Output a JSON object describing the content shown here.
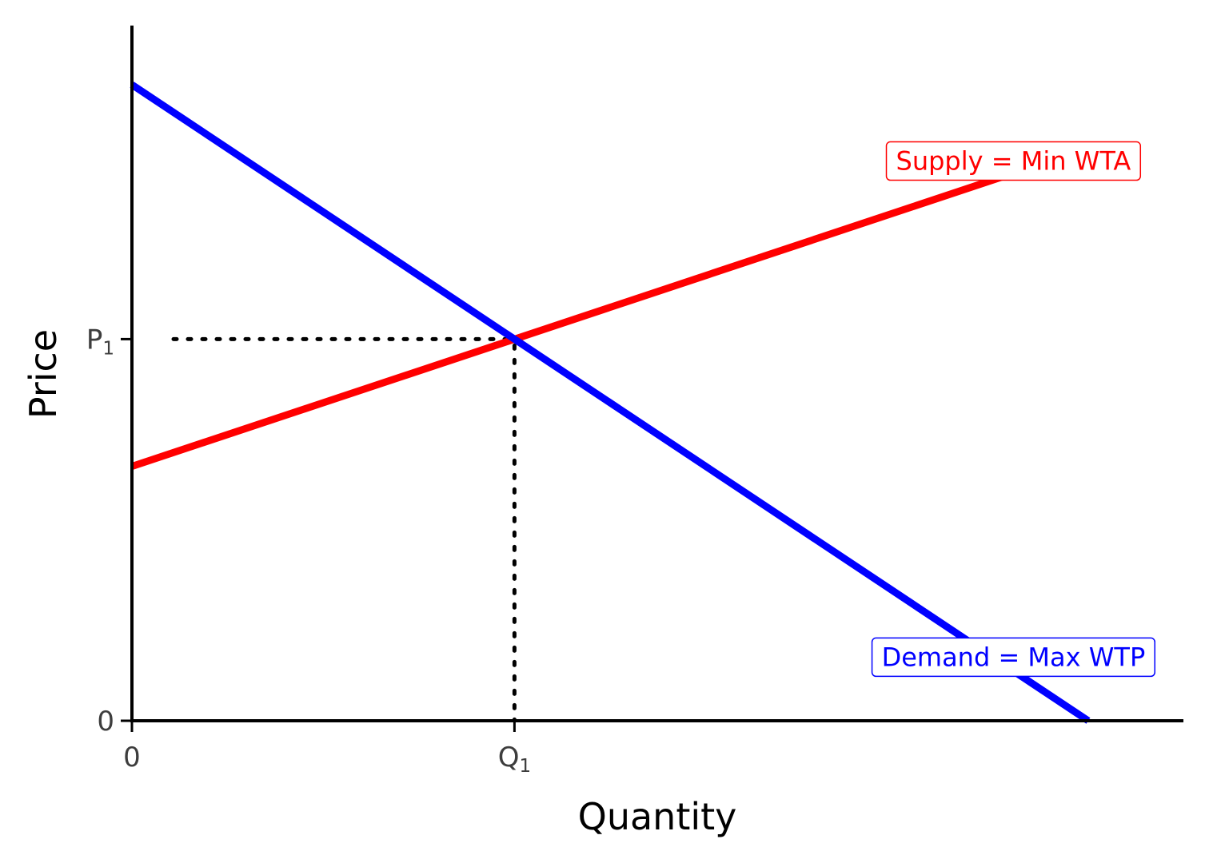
{
  "chart_data": {
    "type": "line",
    "title": "",
    "xlabel": "Quantity",
    "ylabel": "Price",
    "xlim": [
      0,
      11
    ],
    "ylim": [
      0,
      10
    ],
    "grid": false,
    "x_ticks": [
      {
        "value": 0,
        "label": "0",
        "sub": ""
      },
      {
        "value": 4,
        "label": "Q",
        "sub": "1"
      }
    ],
    "y_ticks": [
      {
        "value": 0,
        "label": "0",
        "sub": ""
      },
      {
        "value": 6,
        "label": "P",
        "sub": "1"
      }
    ],
    "series": [
      {
        "name": "Supply = Min WTA",
        "color": "#ff0000",
        "x": [
          0,
          10
        ],
        "y": [
          4,
          9
        ]
      },
      {
        "name": "Demand = Max WTP",
        "color": "#0000ff",
        "x": [
          0,
          10
        ],
        "y": [
          10,
          0
        ]
      }
    ],
    "equilibrium": {
      "x": 4,
      "y": 6
    },
    "annotations": [
      {
        "text": "Supply = Min WTA",
        "color": "#ff0000",
        "x": 9,
        "y": 8.8
      },
      {
        "text": "Demand = Max WTP",
        "color": "#0000ff",
        "x": 9,
        "y": 1
      }
    ]
  }
}
